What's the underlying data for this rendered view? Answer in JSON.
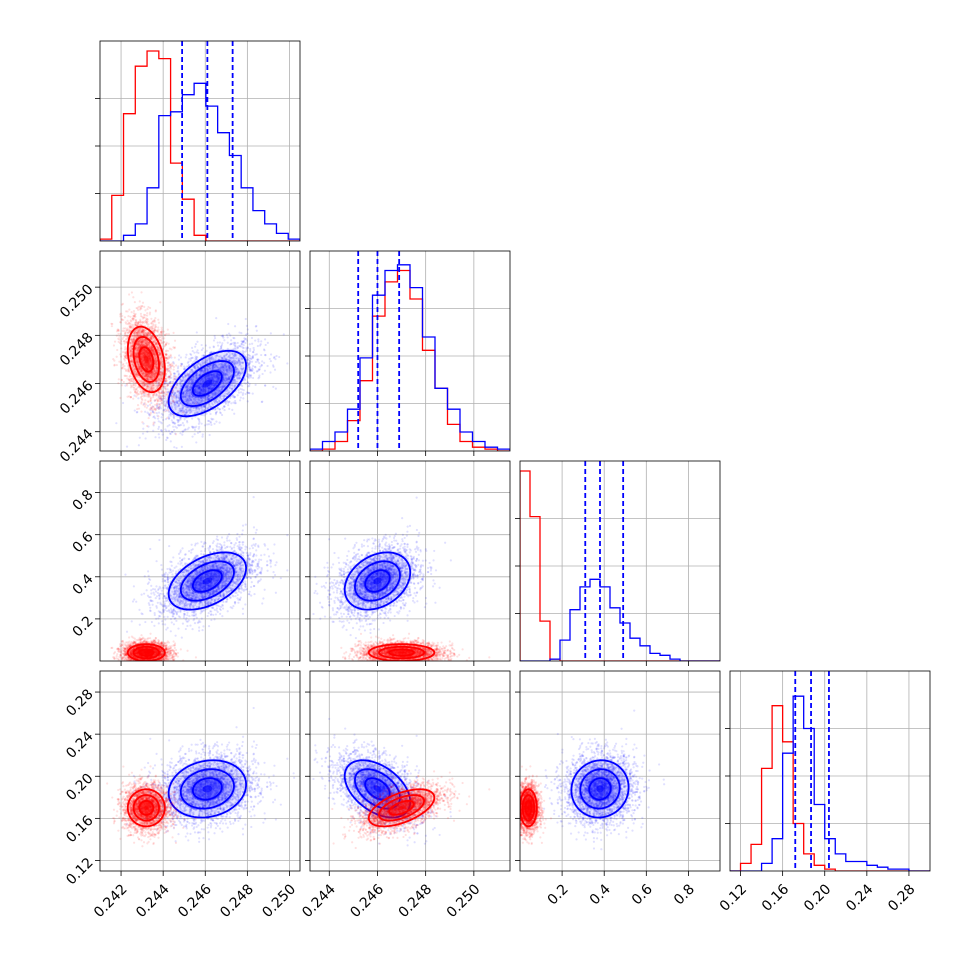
{
  "chart_data": {
    "type": "corner",
    "colors": {
      "red": "#ff0000",
      "blue": "#0000ff",
      "grid": "#b0b0b0",
      "axis": "#000000"
    },
    "parameters": [
      {
        "range": [
          0.241,
          0.2505
        ],
        "ticks": [
          "0.242",
          "0.244",
          "0.246",
          "0.248",
          "0.250"
        ],
        "tick_values": [
          0.242,
          0.244,
          0.246,
          0.248,
          0.25
        ]
      },
      {
        "range": [
          0.2432,
          0.2515
        ],
        "ticks": [
          "0.244",
          "0.246",
          "0.248",
          "0.250"
        ],
        "tick_values": [
          0.244,
          0.246,
          0.248,
          0.25
        ]
      },
      {
        "range": [
          0.0,
          0.95
        ],
        "ticks": [
          "0.2",
          "0.4",
          "0.6",
          "0.8"
        ],
        "tick_values": [
          0.2,
          0.4,
          0.6,
          0.8
        ]
      },
      {
        "range": [
          0.11,
          0.3
        ],
        "ticks": [
          "0.12",
          "0.16",
          "0.20",
          "0.24",
          "0.28"
        ],
        "tick_values": [
          0.12,
          0.16,
          0.2,
          0.24,
          0.28
        ]
      }
    ],
    "blue_dist": {
      "means": [
        0.2461,
        0.246,
        0.38,
        0.188
      ],
      "stds": [
        0.00115,
        0.00085,
        0.085,
        0.017
      ],
      "corr": [
        [
          1,
          0.55,
          0.45,
          0.15
        ],
        [
          0.55,
          1,
          0.3,
          -0.45
        ],
        [
          0.45,
          0.3,
          1,
          0.05
        ],
        [
          0.15,
          -0.45,
          0.05,
          1
        ]
      ],
      "quantiles": [
        [
          0.2449,
          0.2461,
          0.2473
        ],
        [
          0.2452,
          0.246,
          0.2469
        ],
        [
          0.31,
          0.38,
          0.49
        ],
        [
          0.172,
          0.187,
          0.204
        ]
      ]
    },
    "red_dist": {
      "means": [
        0.2432,
        0.247,
        0.04,
        0.17
      ],
      "stds": [
        0.00055,
        0.00085,
        0.025,
        0.011
      ],
      "corr": [
        [
          1,
          -0.3,
          0.0,
          0.0
        ],
        [
          -0.3,
          1,
          0.0,
          0.55
        ],
        [
          0.0,
          0.0,
          1,
          0.0
        ],
        [
          0.0,
          0.55,
          0.0,
          1
        ]
      ]
    },
    "blue_hist": [
      [
        0.0,
        0.0,
        0.03,
        0.09,
        0.28,
        0.66,
        0.68,
        0.77,
        0.83,
        0.71,
        0.57,
        0.45,
        0.28,
        0.16,
        0.09,
        0.04,
        0.01
      ],
      [
        0.01,
        0.05,
        0.1,
        0.22,
        0.49,
        0.82,
        0.95,
        0.98,
        0.86,
        0.6,
        0.33,
        0.22,
        0.1,
        0.05,
        0.02,
        0.01
      ],
      [
        0.0,
        0.0,
        0.0,
        0.01,
        0.11,
        0.27,
        0.39,
        0.43,
        0.39,
        0.28,
        0.2,
        0.12,
        0.08,
        0.04,
        0.03,
        0.01,
        0.0,
        0.0,
        0.0,
        0.0
      ],
      [
        0.0,
        0.0,
        0.0,
        0.04,
        0.17,
        0.62,
        0.92,
        0.75,
        0.35,
        0.17,
        0.09,
        0.05,
        0.05,
        0.03,
        0.02,
        0.01,
        0.01,
        0.0,
        0.0
      ]
    ],
    "red_hist": [
      [
        0.01,
        0.24,
        0.67,
        0.92,
        1.0,
        0.96,
        0.41,
        0.22,
        0.03,
        0.0,
        0.0,
        0.0,
        0.0,
        0.0,
        0.0,
        0.0,
        0.0
      ],
      [
        0.0,
        0.01,
        0.05,
        0.16,
        0.37,
        0.71,
        0.89,
        0.95,
        0.8,
        0.53,
        0.33,
        0.14,
        0.05,
        0.02,
        0.01,
        0.0
      ],
      [
        1.0,
        0.76,
        0.21,
        0.01,
        0.0,
        0.0,
        0.0,
        0.0,
        0.0,
        0.0,
        0.0,
        0.0,
        0.0,
        0.0,
        0.0,
        0.0,
        0.0,
        0.0,
        0.0,
        0.0
      ],
      [
        0.0,
        0.04,
        0.14,
        0.54,
        0.87,
        0.68,
        0.25,
        0.09,
        0.03,
        0.01,
        0.0,
        0.0,
        0.0,
        0.0,
        0.0,
        0.0,
        0.0,
        0.0,
        0.0
      ]
    ],
    "grid": true
  }
}
